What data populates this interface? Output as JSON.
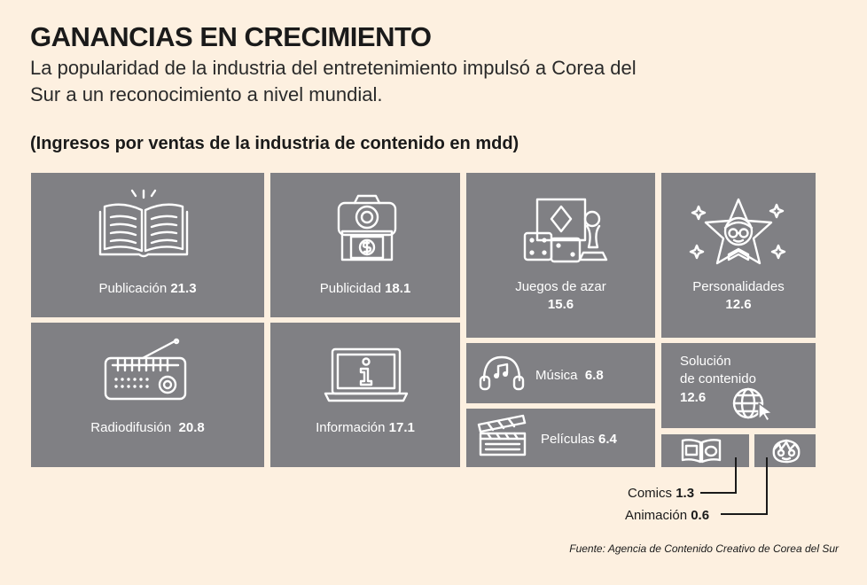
{
  "header": {
    "title": "GANANCIAS EN CRECIMIENTO",
    "subtitle": "La popularidad de la industria del entretenimiento impulsó a Corea del Sur a un reconocimiento a nivel mundial.",
    "units_label": "(Ingresos por ventas de la industria de contenido en mdd)"
  },
  "chart_data": {
    "type": "treemap",
    "title": "GANANCIAS EN CRECIMIENTO",
    "subtitle": "La popularidad de la industria del entretenimiento impulsó a Corea del Sur a un reconocimiento a nivel mundial.",
    "ylabel": "(Ingresos por ventas de la industria de contenido en mdd)",
    "tile_color": "#808084",
    "categories": [
      "Publicación",
      "Publicidad",
      "Juegos de azar",
      "Personalidades",
      "Radiodifusión",
      "Información",
      "Música",
      "Películas",
      "Solución de contenido",
      "Comics",
      "Animación"
    ],
    "values": [
      21.3,
      18.1,
      15.6,
      12.6,
      20.8,
      17.1,
      6.8,
      6.4,
      12.6,
      1.3,
      0.6
    ],
    "labels": {
      "publicacion": {
        "name": "Publicación",
        "value": "21.3",
        "icon": "open-book-icon"
      },
      "publicidad": {
        "name": "Publicidad",
        "value": "18.1",
        "icon": "camera-money-icon"
      },
      "juegos": {
        "name": "Juegos de azar",
        "value": "15.6",
        "icon": "dice-cards-icon"
      },
      "personalidades": {
        "name": "Personalidades",
        "value": "12.6",
        "icon": "star-person-icon"
      },
      "radiodifusion": {
        "name": "Radiodifusión",
        "value": "20.8",
        "icon": "radio-icon"
      },
      "informacion": {
        "name": "Información",
        "value": "17.1",
        "icon": "laptop-info-icon"
      },
      "musica": {
        "name": "Música",
        "value": "6.8",
        "icon": "headphones-icon"
      },
      "peliculas": {
        "name": "Películas",
        "value": "6.4",
        "icon": "clapperboard-icon"
      },
      "solucion": {
        "name_line1": "Solución",
        "name_line2": "de contenido",
        "value": "12.6",
        "icon": "globe-cursor-icon"
      },
      "comics": {
        "name": "Comics",
        "value": "1.3",
        "icon": "comic-book-icon"
      },
      "animacion": {
        "name": "Animación",
        "value": "0.6",
        "icon": "animated-face-icon"
      }
    }
  },
  "footer": {
    "source": "Fuente: Agencia de Contenido Creativo de Corea del Sur"
  }
}
